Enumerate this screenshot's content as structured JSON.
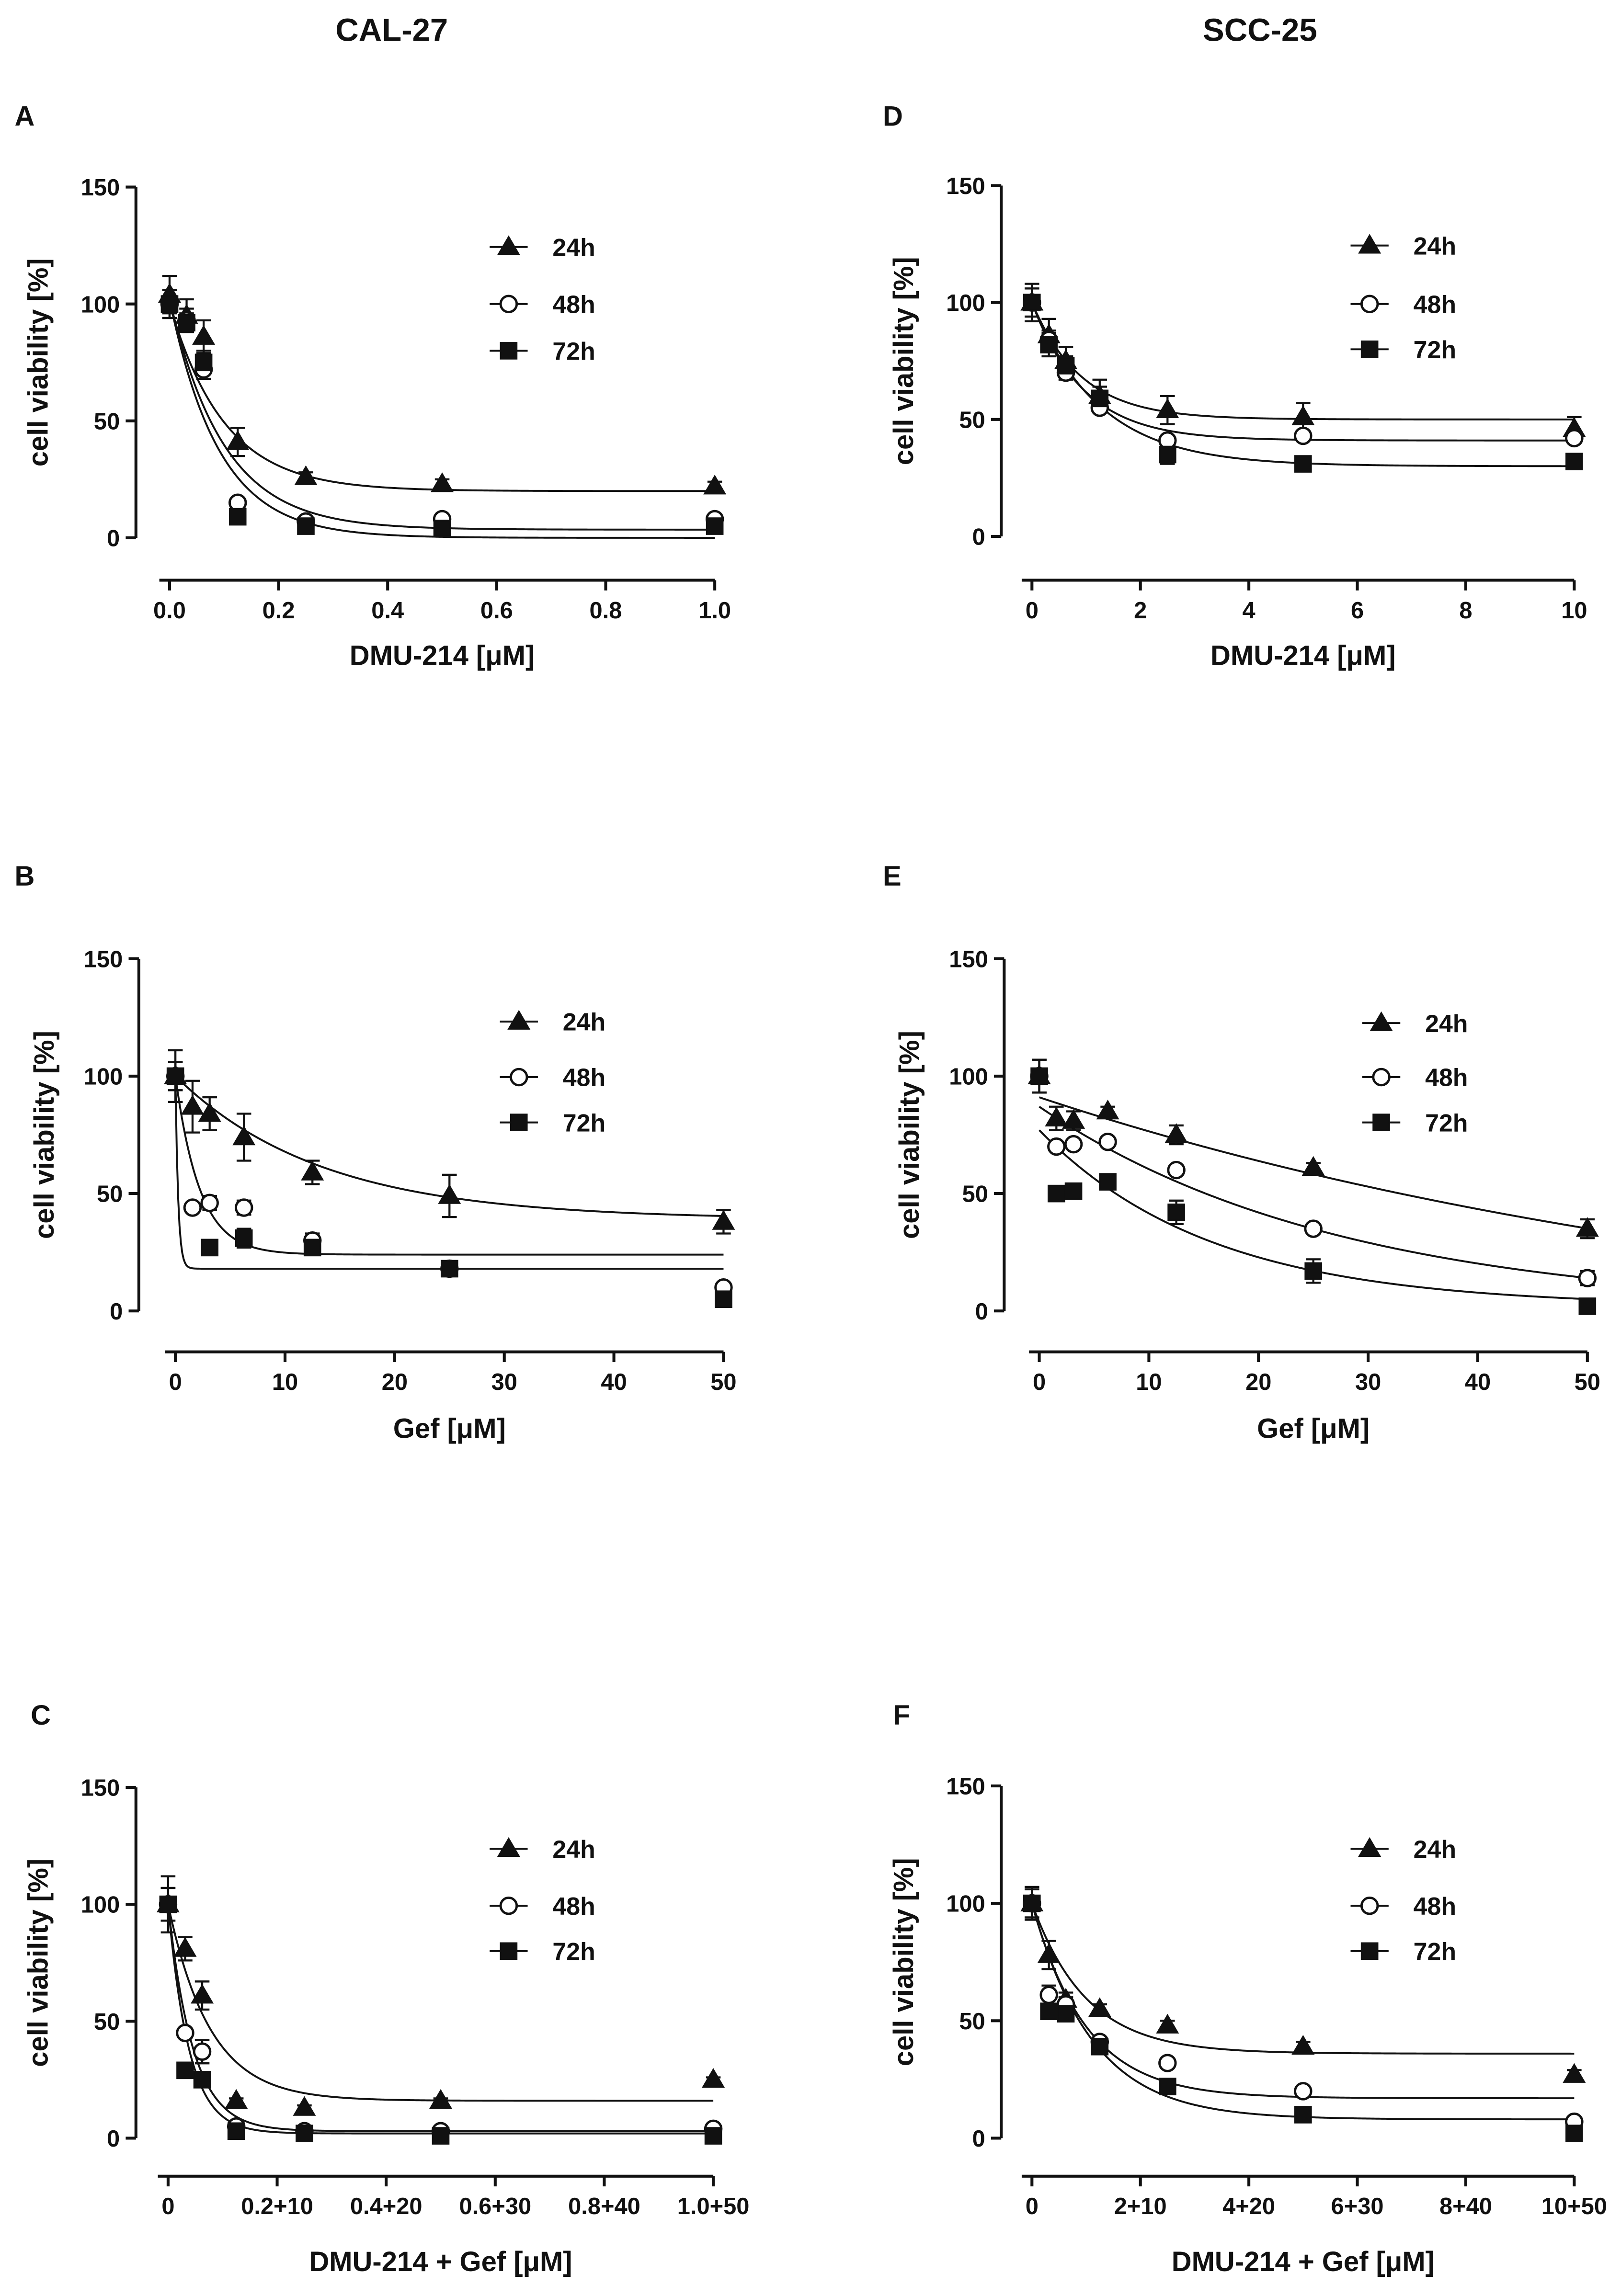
{
  "columns": [
    "CAL-27",
    "SCC-25"
  ],
  "chart_data": [
    {
      "panel": "A",
      "type": "scatter",
      "xlabel": "DMU-214 [μM]",
      "ylabel": "cell viability [%]",
      "xlim": [
        0,
        1.0
      ],
      "ylim": [
        0,
        150
      ],
      "xticks": [
        0,
        0.2,
        0.4,
        0.6,
        0.8,
        1.0
      ],
      "xtick_labels": [
        "0.0",
        "0.2",
        "0.4",
        "0.6",
        "0.8",
        "1.0"
      ],
      "yticks": [
        0,
        50,
        100,
        150
      ],
      "ytick_labels": [
        "0",
        "50",
        "100",
        "150"
      ],
      "legend": "top-right",
      "x": [
        0,
        0.03125,
        0.0625,
        0.125,
        0.25,
        0.5,
        1.0
      ],
      "series": [
        {
          "name": "24h",
          "marker": "triangle-filled",
          "values": [
            104,
            95,
            86,
            41,
            26,
            23,
            22
          ],
          "errors": [
            8,
            7,
            7,
            6,
            2,
            2,
            2
          ],
          "fit": {
            "y0": 100,
            "plateau": 20,
            "k": 10
          }
        },
        {
          "name": "48h",
          "marker": "circle-open",
          "values": [
            100,
            93,
            72,
            15,
            7,
            8,
            8
          ],
          "errors": [
            6,
            5,
            4,
            2,
            1,
            1,
            1
          ],
          "fit": {
            "y0": 102,
            "plateau": 3.5,
            "k": 10
          }
        },
        {
          "name": "72h",
          "marker": "square-filled",
          "values": [
            100,
            92,
            75,
            9,
            5,
            4,
            5
          ],
          "errors": [
            6,
            4,
            5,
            2,
            1,
            1,
            1
          ],
          "fit": {
            "y0": 102,
            "plateau": 0,
            "k": 11
          }
        }
      ]
    },
    {
      "panel": "B",
      "type": "scatter",
      "xlabel": "Gef [μM]",
      "ylabel": "cell viability [%]",
      "xlim": [
        0,
        50
      ],
      "ylim": [
        0,
        150
      ],
      "xticks": [
        0,
        10,
        20,
        30,
        40,
        50
      ],
      "xtick_labels": [
        "0",
        "10",
        "20",
        "30",
        "40",
        "50"
      ],
      "yticks": [
        0,
        50,
        100,
        150
      ],
      "ytick_labels": [
        "0",
        "50",
        "100",
        "150"
      ],
      "legend": "top-right",
      "x": [
        0,
        1.5625,
        3.125,
        6.25,
        12.5,
        25,
        50
      ],
      "series": [
        {
          "name": "24h",
          "marker": "triangle-filled",
          "values": [
            100,
            87,
            84,
            74,
            59,
            49,
            38
          ],
          "errors": [
            11,
            11,
            7,
            10,
            5,
            9,
            5
          ],
          "fit": {
            "y0": 100,
            "plateau": 39,
            "k": 0.075
          }
        },
        {
          "name": "48h",
          "marker": "circle-open",
          "values": [
            100,
            44,
            46,
            44,
            30,
            18,
            10
          ],
          "errors": [
            6,
            2,
            3,
            3,
            3,
            2,
            1
          ],
          "fit": {
            "y0": 100,
            "plateau": 24,
            "k": 0.45
          }
        },
        {
          "name": "72h",
          "marker": "square-filled",
          "values": [
            100,
            null,
            27,
            31,
            27,
            18,
            5
          ],
          "errors": [
            6,
            0,
            3,
            4,
            3,
            3,
            1
          ],
          "fit": {
            "y0": 100,
            "plateau": 18,
            "k": 4
          }
        }
      ]
    },
    {
      "panel": "C",
      "type": "scatter",
      "xlabel": "DMU-214 + Gef [μM]",
      "ylabel": "cell viability [%]",
      "xlim": [
        0,
        1.0
      ],
      "ylim": [
        0,
        150
      ],
      "xticks": [
        0,
        0.2,
        0.4,
        0.6,
        0.8,
        1.0
      ],
      "xtick_labels": [
        "0",
        "0.2+10",
        "0.4+20",
        "0.6+30",
        "0.8+40",
        "1.0+50"
      ],
      "yticks": [
        0,
        50,
        100,
        150
      ],
      "ytick_labels": [
        "0",
        "50",
        "100",
        "150"
      ],
      "legend": "top-right",
      "x": [
        0,
        0.03125,
        0.0625,
        0.125,
        0.25,
        0.5,
        1.0
      ],
      "series": [
        {
          "name": "24h",
          "marker": "triangle-filled",
          "values": [
            100,
            81,
            61,
            16,
            13,
            16,
            25
          ],
          "errors": [
            12,
            5,
            6,
            1,
            1,
            1,
            1
          ],
          "fit": {
            "y0": 100,
            "plateau": 16,
            "k": 13
          }
        },
        {
          "name": "48h",
          "marker": "circle-open",
          "values": [
            100,
            45,
            37,
            5,
            3,
            3,
            4
          ],
          "errors": [
            7,
            2,
            5,
            1,
            1,
            1,
            1
          ],
          "fit": {
            "y0": 100,
            "plateau": 3,
            "k": 22
          }
        },
        {
          "name": "72h",
          "marker": "square-filled",
          "values": [
            100,
            29,
            25,
            3,
            2,
            1,
            1
          ],
          "errors": [
            7,
            2,
            3,
            1,
            1,
            1,
            1
          ],
          "fit": {
            "y0": 100,
            "plateau": 2,
            "k": 26
          }
        }
      ]
    },
    {
      "panel": "D",
      "type": "scatter",
      "xlabel": "DMU-214 [μM]",
      "ylabel": "cell viability [%]",
      "xlim": [
        0,
        10
      ],
      "ylim": [
        0,
        150
      ],
      "xticks": [
        0,
        2,
        4,
        6,
        8,
        10
      ],
      "xtick_labels": [
        "0",
        "2",
        "4",
        "6",
        "8",
        "10"
      ],
      "yticks": [
        0,
        50,
        100,
        150
      ],
      "ytick_labels": [
        "0",
        "50",
        "100",
        "150"
      ],
      "legend": "top-right",
      "x": [
        0,
        0.3125,
        0.625,
        1.25,
        2.5,
        5,
        10
      ],
      "series": [
        {
          "name": "24h",
          "marker": "triangle-filled",
          "values": [
            100,
            86,
            75,
            60,
            54,
            51,
            46
          ],
          "errors": [
            8,
            7,
            6,
            7,
            6,
            6,
            5
          ],
          "fit": {
            "y0": 100,
            "plateau": 50,
            "k": 1.1
          }
        },
        {
          "name": "48h",
          "marker": "circle-open",
          "values": [
            100,
            84,
            70,
            55,
            41,
            43,
            42
          ],
          "errors": [
            6,
            4,
            3,
            2,
            2,
            2,
            2
          ],
          "fit": {
            "y0": 100,
            "plateau": 41,
            "k": 1.05
          }
        },
        {
          "name": "72h",
          "marker": "square-filled",
          "values": [
            100,
            82,
            73,
            59,
            35,
            31,
            32
          ],
          "errors": [
            6,
            5,
            4,
            5,
            4,
            2,
            2
          ],
          "fit": {
            "y0": 100,
            "plateau": 30,
            "k": 0.8
          }
        }
      ]
    },
    {
      "panel": "E",
      "type": "scatter",
      "xlabel": "Gef [μM]",
      "ylabel": "cell viability [%]",
      "xlim": [
        0,
        50
      ],
      "ylim": [
        0,
        150
      ],
      "xticks": [
        0,
        10,
        20,
        30,
        40,
        50
      ],
      "xtick_labels": [
        "0",
        "10",
        "20",
        "30",
        "40",
        "50"
      ],
      "yticks": [
        0,
        50,
        100,
        150
      ],
      "ytick_labels": [
        "0",
        "50",
        "100",
        "150"
      ],
      "legend": "top-right",
      "x": [
        0,
        1.5625,
        3.125,
        6.25,
        12.5,
        25,
        50
      ],
      "series": [
        {
          "name": "24h",
          "marker": "triangle-filled",
          "values": [
            100,
            82,
            81,
            85,
            75,
            61,
            35
          ],
          "errors": [
            7,
            5,
            4,
            2,
            4,
            2,
            4
          ],
          "fit": {
            "y0": 91,
            "plateau": -20,
            "k": 0.014
          }
        },
        {
          "name": "48h",
          "marker": "circle-open",
          "values": [
            100,
            70,
            71,
            72,
            60,
            35,
            14
          ],
          "errors": [
            7,
            2,
            2,
            2,
            2,
            2,
            3
          ],
          "fit": {
            "y0": 87,
            "plateau": 0,
            "k": 0.0365
          }
        },
        {
          "name": "72h",
          "marker": "square-filled",
          "values": [
            100,
            50,
            51,
            55,
            42,
            17,
            2
          ],
          "errors": [
            7,
            2,
            2,
            2,
            5,
            5,
            1
          ],
          "fit": {
            "y0": 77,
            "plateau": 2,
            "k": 0.064
          }
        }
      ]
    },
    {
      "panel": "F",
      "type": "scatter",
      "xlabel": "DMU-214 + Gef [μM]",
      "ylabel": "cell viability [%]",
      "xlim": [
        0,
        10
      ],
      "ylim": [
        0,
        150
      ],
      "xticks": [
        0,
        2,
        4,
        6,
        8,
        10
      ],
      "xtick_labels": [
        "0",
        "2+10",
        "4+20",
        "6+30",
        "8+40",
        "10+50"
      ],
      "yticks": [
        0,
        50,
        100,
        150
      ],
      "ytick_labels": [
        "0",
        "50",
        "100",
        "150"
      ],
      "legend": "top-right",
      "x": [
        0,
        0.3125,
        0.625,
        1.25,
        2.5,
        5,
        10
      ],
      "series": [
        {
          "name": "24h",
          "marker": "triangle-filled",
          "values": [
            100,
            78,
            59,
            55,
            48,
            39,
            27
          ],
          "errors": [
            7,
            6,
            3,
            2,
            2,
            2,
            2
          ],
          "fit": {
            "y0": 100,
            "plateau": 36,
            "k": 1.0
          }
        },
        {
          "name": "48h",
          "marker": "circle-open",
          "values": [
            100,
            61,
            57,
            41,
            32,
            20,
            7
          ],
          "errors": [
            6,
            4,
            3,
            2,
            2,
            2,
            1
          ],
          "fit": {
            "y0": 100,
            "plateau": 17,
            "k": 1.0
          }
        },
        {
          "name": "72h",
          "marker": "square-filled",
          "values": [
            100,
            54,
            53,
            39,
            22,
            10,
            2
          ],
          "errors": [
            6,
            3,
            3,
            2,
            2,
            2,
            1
          ],
          "fit": {
            "y0": 100,
            "plateau": 8,
            "k": 0.9
          }
        }
      ]
    }
  ]
}
